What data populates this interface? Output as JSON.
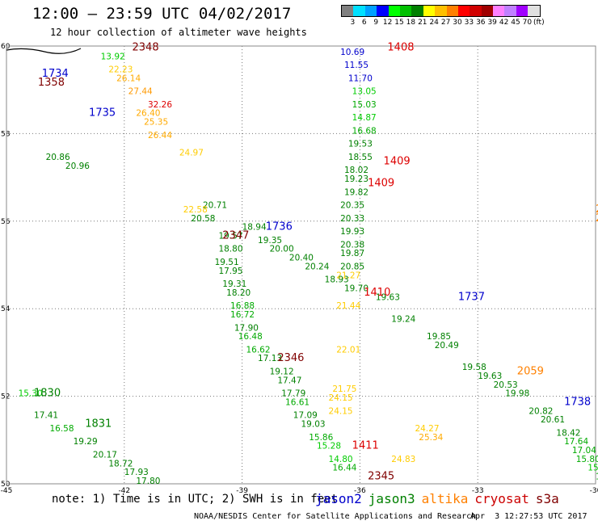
{
  "title": "12:00 – 23:59 UTC 04/02/2017",
  "subtitle": "12 hour collection of altimeter wave heights",
  "legend": {
    "colors": [
      "#808080",
      "#00e0ff",
      "#00a0ff",
      "#0000ff",
      "#00ff00",
      "#00c000",
      "#008000",
      "#ffff00",
      "#ffc000",
      "#ff8000",
      "#ff0000",
      "#d00000",
      "#a00000",
      "#ff80ff",
      "#c080ff",
      "#a000ff",
      "#e0e0e0"
    ],
    "labels": [
      "3",
      "6",
      "9",
      "12",
      "15",
      "18",
      "21",
      "24",
      "27",
      "30",
      "33",
      "36",
      "39",
      "42",
      "45",
      "70",
      "(ft)"
    ]
  },
  "axes": {
    "x_ticks": [
      "-45",
      "-42",
      "-39",
      "-36",
      "-33",
      "-30"
    ],
    "y_ticks": [
      "50",
      "52",
      "54",
      "56",
      "58",
      "60"
    ]
  },
  "chart_data": {
    "type": "scatter",
    "title": "12:00 – 23:59 UTC 04/02/2017",
    "subtitle": "12 hour collection of altimeter wave heights",
    "xlim": [
      -45,
      -30
    ],
    "ylim": [
      50,
      60
    ],
    "x_label": "",
    "y_label": "",
    "units": "ft",
    "series": [
      {
        "name": "jason2",
        "color": "#0000cc",
        "points": [
          {
            "x": -36.5,
            "y": 59.8,
            "v": "10.69",
            "c": "#0000cc"
          },
          {
            "x": -36.4,
            "y": 59.5,
            "v": "11.55",
            "c": "#0000cc"
          },
          {
            "x": -36.3,
            "y": 59.2,
            "v": "11.70",
            "c": "#0000cc"
          },
          {
            "x": -36.2,
            "y": 58.9,
            "v": "13.05",
            "c": "#00cc00"
          },
          {
            "x": -36.2,
            "y": 58.6,
            "v": "15.03",
            "c": "#00aa00"
          },
          {
            "x": -36.2,
            "y": 58.3,
            "v": "14.87",
            "c": "#00cc00"
          },
          {
            "x": -36.2,
            "y": 58.0,
            "v": "16.68",
            "c": "#00aa00"
          },
          {
            "x": -36.3,
            "y": 57.7,
            "v": "19.53",
            "c": "#008000"
          },
          {
            "x": -36.3,
            "y": 57.4,
            "v": "18.55",
            "c": "#008000"
          },
          {
            "x": -36.4,
            "y": 57.1,
            "v": "18.02",
            "c": "#008000"
          },
          {
            "x": -36.4,
            "y": 56.9,
            "v": "19.23",
            "c": "#008000"
          },
          {
            "x": -36.4,
            "y": 56.6,
            "v": "19.82",
            "c": "#008000"
          },
          {
            "x": -36.5,
            "y": 56.3,
            "v": "20.35",
            "c": "#008000"
          },
          {
            "x": -36.5,
            "y": 56.0,
            "v": "20.33",
            "c": "#008000"
          },
          {
            "x": -36.5,
            "y": 55.7,
            "v": "19.93",
            "c": "#008000"
          },
          {
            "x": -36.5,
            "y": 55.4,
            "v": "20.38",
            "c": "#008000"
          },
          {
            "x": -36.5,
            "y": 55.2,
            "v": "19.87",
            "c": "#008000"
          },
          {
            "x": -36.5,
            "y": 54.9,
            "v": "20.85",
            "c": "#008000"
          },
          {
            "x": -44.0,
            "y": 57.4,
            "v": "20.86",
            "c": "#008000"
          },
          {
            "x": -43.5,
            "y": 57.2,
            "v": "20.96",
            "c": "#008000"
          },
          {
            "x": -40.0,
            "y": 56.3,
            "v": "20.71",
            "c": "#008000"
          },
          {
            "x": -40.3,
            "y": 56.0,
            "v": "20.58",
            "c": "#008000"
          },
          {
            "x": -39.0,
            "y": 55.8,
            "v": "18.94",
            "c": "#008000"
          },
          {
            "x": -38.6,
            "y": 55.5,
            "v": "19.35",
            "c": "#008000"
          },
          {
            "x": -38.3,
            "y": 55.3,
            "v": "20.00",
            "c": "#008000"
          },
          {
            "x": -37.8,
            "y": 55.1,
            "v": "20.40",
            "c": "#008000"
          },
          {
            "x": -37.4,
            "y": 54.9,
            "v": "20.24",
            "c": "#008000"
          },
          {
            "x": -36.9,
            "y": 54.6,
            "v": "18.93",
            "c": "#008000"
          },
          {
            "x": -36.4,
            "y": 54.4,
            "v": "19.70",
            "c": "#008000"
          },
          {
            "x": -35.6,
            "y": 54.2,
            "v": "19.63",
            "c": "#008000"
          },
          {
            "x": -35.2,
            "y": 53.7,
            "v": "19.24",
            "c": "#008000"
          },
          {
            "x": -34.3,
            "y": 53.3,
            "v": "19.85",
            "c": "#008000"
          },
          {
            "x": -34.1,
            "y": 53.1,
            "v": "20.49",
            "c": "#008000"
          },
          {
            "x": -33.4,
            "y": 52.6,
            "v": "19.58",
            "c": "#008000"
          },
          {
            "x": -33.0,
            "y": 52.4,
            "v": "19.63",
            "c": "#008000"
          },
          {
            "x": -32.6,
            "y": 52.2,
            "v": "20.53",
            "c": "#008000"
          },
          {
            "x": -32.3,
            "y": 52.0,
            "v": "19.98",
            "c": "#008000"
          },
          {
            "x": -31.7,
            "y": 51.6,
            "v": "20.82",
            "c": "#008000"
          },
          {
            "x": -31.4,
            "y": 51.4,
            "v": "20.61",
            "c": "#008000"
          },
          {
            "x": -31.0,
            "y": 51.1,
            "v": "18.42",
            "c": "#008000"
          },
          {
            "x": -30.8,
            "y": 50.9,
            "v": "17.64",
            "c": "#00aa00"
          },
          {
            "x": -30.6,
            "y": 50.7,
            "v": "17.04",
            "c": "#00aa00"
          },
          {
            "x": -30.5,
            "y": 50.5,
            "v": "15.80",
            "c": "#00aa00"
          },
          {
            "x": -30.2,
            "y": 50.3,
            "v": "15.37",
            "c": "#00cc00"
          },
          {
            "x": -30.0,
            "y": 50.1,
            "v": "15.99",
            "c": "#00aa00"
          }
        ]
      },
      {
        "name": "jason3",
        "color": "#008000",
        "points": [
          {
            "x": -39.6,
            "y": 55.6,
            "v": "19.57",
            "c": "#008000"
          },
          {
            "x": -39.6,
            "y": 55.3,
            "v": "18.80",
            "c": "#008000"
          },
          {
            "x": -39.7,
            "y": 55.0,
            "v": "19.51",
            "c": "#008000"
          },
          {
            "x": -39.6,
            "y": 54.8,
            "v": "17.95",
            "c": "#008000"
          },
          {
            "x": -39.5,
            "y": 54.5,
            "v": "19.31",
            "c": "#008000"
          },
          {
            "x": -39.4,
            "y": 54.3,
            "v": "18.20",
            "c": "#008000"
          },
          {
            "x": -39.3,
            "y": 54.0,
            "v": "16.88",
            "c": "#00aa00"
          },
          {
            "x": -39.3,
            "y": 53.8,
            "v": "16.72",
            "c": "#00aa00"
          },
          {
            "x": -39.2,
            "y": 53.5,
            "v": "17.90",
            "c": "#008000"
          },
          {
            "x": -39.1,
            "y": 53.3,
            "v": "16.48",
            "c": "#00aa00"
          },
          {
            "x": -38.9,
            "y": 53.0,
            "v": "16.62",
            "c": "#00aa00"
          },
          {
            "x": -38.6,
            "y": 52.8,
            "v": "17.13",
            "c": "#008000"
          },
          {
            "x": -38.3,
            "y": 52.5,
            "v": "19.12",
            "c": "#008000"
          },
          {
            "x": -38.1,
            "y": 52.3,
            "v": "17.47",
            "c": "#008000"
          },
          {
            "x": -38.0,
            "y": 52.0,
            "v": "17.79",
            "c": "#008000"
          },
          {
            "x": -37.9,
            "y": 51.8,
            "v": "16.61",
            "c": "#00aa00"
          },
          {
            "x": -37.7,
            "y": 51.5,
            "v": "17.09",
            "c": "#008000"
          },
          {
            "x": -37.5,
            "y": 51.3,
            "v": "19.03",
            "c": "#008000"
          },
          {
            "x": -37.3,
            "y": 51.0,
            "v": "15.86",
            "c": "#00aa00"
          },
          {
            "x": -37.1,
            "y": 50.8,
            "v": "15.28",
            "c": "#00cc00"
          },
          {
            "x": -36.8,
            "y": 50.5,
            "v": "14.80",
            "c": "#00cc00"
          },
          {
            "x": -36.7,
            "y": 50.3,
            "v": "16.44",
            "c": "#00aa00"
          },
          {
            "x": -44.7,
            "y": 52.0,
            "v": "15.30",
            "c": "#00cc00"
          },
          {
            "x": -44.3,
            "y": 51.5,
            "v": "17.41",
            "c": "#008000"
          },
          {
            "x": -43.9,
            "y": 51.2,
            "v": "16.58",
            "c": "#00aa00"
          },
          {
            "x": -43.3,
            "y": 50.9,
            "v": "19.29",
            "c": "#008000"
          },
          {
            "x": -42.8,
            "y": 50.6,
            "v": "20.17",
            "c": "#008000"
          },
          {
            "x": -42.4,
            "y": 50.4,
            "v": "18.72",
            "c": "#008000"
          },
          {
            "x": -42.0,
            "y": 50.2,
            "v": "17.93",
            "c": "#008000"
          },
          {
            "x": -41.7,
            "y": 50.0,
            "v": "17.80",
            "c": "#008000"
          }
        ]
      },
      {
        "name": "altika",
        "color": "#ff8000",
        "points": [
          {
            "x": -42.6,
            "y": 59.7,
            "v": "13.92",
            "c": "#00cc00"
          },
          {
            "x": -42.4,
            "y": 59.4,
            "v": "22.23",
            "c": "#ffcc00"
          },
          {
            "x": -42.2,
            "y": 59.2,
            "v": "26.14",
            "c": "#ffaa00"
          },
          {
            "x": -41.9,
            "y": 58.9,
            "v": "27.44",
            "c": "#ff9900"
          },
          {
            "x": -41.7,
            "y": 58.4,
            "v": "26.40",
            "c": "#ffaa00"
          },
          {
            "x": -41.5,
            "y": 58.2,
            "v": "25.35",
            "c": "#ffaa00"
          },
          {
            "x": -41.4,
            "y": 57.9,
            "v": "26.44",
            "c": "#ffaa00"
          },
          {
            "x": -40.6,
            "y": 57.5,
            "v": "24.97",
            "c": "#ffcc00"
          },
          {
            "x": -40.5,
            "y": 56.2,
            "v": "22.58",
            "c": "#ffcc00"
          },
          {
            "x": -36.6,
            "y": 54.7,
            "v": "21.27",
            "c": "#ffcc00"
          },
          {
            "x": -36.6,
            "y": 54.0,
            "v": "21.44",
            "c": "#ffcc00"
          },
          {
            "x": -36.6,
            "y": 53.0,
            "v": "22.01",
            "c": "#ffcc00"
          },
          {
            "x": -36.7,
            "y": 52.1,
            "v": "21.75",
            "c": "#ffcc00"
          },
          {
            "x": -36.8,
            "y": 51.9,
            "v": "24.15",
            "c": "#ffcc00"
          },
          {
            "x": -36.8,
            "y": 51.6,
            "v": "24.15",
            "c": "#ffcc00"
          },
          {
            "x": -34.6,
            "y": 51.2,
            "v": "24.27",
            "c": "#ffcc00"
          },
          {
            "x": -34.5,
            "y": 51.0,
            "v": "25.34",
            "c": "#ffaa00"
          },
          {
            "x": -35.2,
            "y": 50.5,
            "v": "24.83",
            "c": "#ffcc00"
          }
        ]
      },
      {
        "name": "cryosat",
        "color": "#cc0000",
        "points": [
          {
            "x": -41.4,
            "y": 58.6,
            "v": "32.26",
            "c": "#dd0000"
          }
        ]
      },
      {
        "name": "s3a",
        "color": "#800000",
        "points": []
      }
    ]
  },
  "pass_labels": [
    {
      "text": "2348",
      "lon": -41.8,
      "lat": 59.9,
      "color": "#800000"
    },
    {
      "text": "1734",
      "lon": -44.1,
      "lat": 59.3,
      "color": "#0000cc"
    },
    {
      "text": "1358",
      "lon": -44.2,
      "lat": 59.1,
      "color": "#800000"
    },
    {
      "text": "1735",
      "lon": -42.9,
      "lat": 58.4,
      "color": "#0000cc"
    },
    {
      "text": "1408",
      "lon": -35.3,
      "lat": 59.9,
      "color": "#dd0000"
    },
    {
      "text": "1409",
      "lon": -35.4,
      "lat": 57.3,
      "color": "#dd0000"
    },
    {
      "text": "1409",
      "lon": -35.8,
      "lat": 56.8,
      "color": "#dd0000"
    },
    {
      "text": "1736",
      "lon": -38.4,
      "lat": 55.8,
      "color": "#0000cc"
    },
    {
      "text": "2347",
      "lon": -39.5,
      "lat": 55.6,
      "color": "#800000"
    },
    {
      "text": "1410",
      "lon": -35.9,
      "lat": 54.3,
      "color": "#dd0000"
    },
    {
      "text": "1737",
      "lon": -33.5,
      "lat": 54.2,
      "color": "#0000cc"
    },
    {
      "text": "2346",
      "lon": -38.1,
      "lat": 52.8,
      "color": "#800000"
    },
    {
      "text": "2059",
      "lon": -32.0,
      "lat": 52.5,
      "color": "#ff8000"
    },
    {
      "text": "2058",
      "lon": -30.0,
      "lat": 56.2,
      "color": "#ff8000"
    },
    {
      "text": "2058",
      "lon": -30.0,
      "lat": 56.0,
      "color": "#ff8000"
    },
    {
      "text": "1738",
      "lon": -30.8,
      "lat": 51.8,
      "color": "#0000cc"
    },
    {
      "text": "1830",
      "lon": -44.3,
      "lat": 52.0,
      "color": "#008000"
    },
    {
      "text": "1831",
      "lon": -43.0,
      "lat": 51.3,
      "color": "#008000"
    },
    {
      "text": "1411",
      "lon": -36.2,
      "lat": 50.8,
      "color": "#dd0000"
    },
    {
      "text": "2345",
      "lon": -35.8,
      "lat": 50.1,
      "color": "#800000"
    }
  ],
  "footer": {
    "note": "note: 1) Time is in UTC; 2) SWH is in feet",
    "satellites": [
      {
        "name": "jason2",
        "color": "#0000cc"
      },
      {
        "name": "jason3",
        "color": "#008000"
      },
      {
        "name": "altika",
        "color": "#ff8000"
      },
      {
        "name": "cryosat",
        "color": "#cc0000"
      },
      {
        "name": "s3a",
        "color": "#800000"
      }
    ],
    "credit": "NOAA/NESDIS Center for Satellite Applications and Research",
    "timestamp": "Apr  3 12:27:53 UTC 2017"
  }
}
